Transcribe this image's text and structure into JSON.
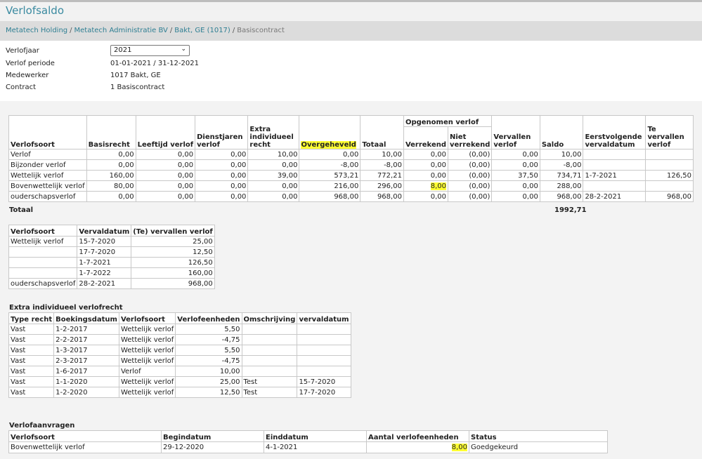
{
  "title": "Verlofsaldo",
  "breadcrumb": [
    "Metatech Holding",
    "Metatech Administratie BV",
    "Bakt, GE (1017)",
    "Basiscontract"
  ],
  "info": {
    "jaar_label": "Verlofjaar",
    "jaar_value": "2021",
    "periode_label": "Verlof periode",
    "periode_value": "01-01-2021 / 31-12-2021",
    "medewerker_label": "Medewerker",
    "medewerker_value": "1017 Bakt, GE",
    "contract_label": "Contract",
    "contract_value": "1 Basiscontract"
  },
  "main_table": {
    "headers": {
      "verlofsoort": "Verlofsoort",
      "basisrecht": "Basisrecht",
      "leeftijd": "Leeftijd verlof",
      "dienstjaren": "Dienstjaren verlof",
      "extra": "Extra individueel recht",
      "overgeheveld": "Overgeheveld",
      "totaal": "Totaal",
      "opgenomen": "Opgenomen verlof",
      "verrekend": "Verrekend",
      "niet_verrekend": "Niet verrekend",
      "vervallen": "Vervallen verlof",
      "saldo": "Saldo",
      "eerstvolgende": "Eerstvolgende vervaldatum",
      "te_vervallen": "Te vervallen verlof"
    },
    "rows": [
      [
        "Verlof",
        "0,00",
        "0,00",
        "0,00",
        "10,00",
        "0,00",
        "10,00",
        "0,00",
        "(0,00)",
        "0,00",
        "10,00",
        "",
        ""
      ],
      [
        "Bijzonder verlof",
        "0,00",
        "0,00",
        "0,00",
        "0,00",
        "-8,00",
        "-8,00",
        "0,00",
        "(0,00)",
        "0,00",
        "-8,00",
        "",
        ""
      ],
      [
        "Wettelijk verlof",
        "160,00",
        "0,00",
        "0,00",
        "39,00",
        "573,21",
        "772,21",
        "0,00",
        "(0,00)",
        "37,50",
        "734,71",
        "1-7-2021",
        "126,50"
      ],
      [
        "Bovenwettelijk verlof",
        "80,00",
        "0,00",
        "0,00",
        "0,00",
        "216,00",
        "296,00",
        "8,00",
        "(0,00)",
        "0,00",
        "288,00",
        "",
        ""
      ],
      [
        "ouderschapsverlof",
        "0,00",
        "0,00",
        "0,00",
        "0,00",
        "968,00",
        "968,00",
        "0,00",
        "(0,00)",
        "0,00",
        "968,00",
        "28-2-2021",
        "968,00"
      ]
    ],
    "totaal_label": "Totaal",
    "totaal_value": "1992,71"
  },
  "verval_table": {
    "headers": [
      "Verlofsoort",
      "Vervaldatum",
      "(Te) vervallen verlof"
    ],
    "rows": [
      [
        "Wettelijk verlof",
        "15-7-2020",
        "25,00"
      ],
      [
        "",
        "17-7-2020",
        "12,50"
      ],
      [
        "",
        "1-7-2021",
        "126,50"
      ],
      [
        "",
        "1-7-2022",
        "160,00"
      ],
      [
        "ouderschapsverlof",
        "28-2-2021",
        "968,00"
      ]
    ]
  },
  "extra_table": {
    "title": "Extra individueel verlofrecht",
    "headers": [
      "Type recht",
      "Boekingsdatum",
      "Verlofsoort",
      "Verlofeenheden",
      "Omschrijving",
      "vervaldatum"
    ],
    "rows": [
      [
        "Vast",
        "1-2-2017",
        "Wettelijk verlof",
        "5,50",
        "",
        ""
      ],
      [
        "Vast",
        "2-2-2017",
        "Wettelijk verlof",
        "-4,75",
        "",
        ""
      ],
      [
        "Vast",
        "1-3-2017",
        "Wettelijk verlof",
        "5,50",
        "",
        ""
      ],
      [
        "Vast",
        "2-3-2017",
        "Wettelijk verlof",
        "-4,75",
        "",
        ""
      ],
      [
        "Vast",
        "1-6-2017",
        "Verlof",
        "10,00",
        "",
        ""
      ],
      [
        "Vast",
        "1-1-2020",
        "Wettelijk verlof",
        "25,00",
        "Test",
        "15-7-2020"
      ],
      [
        "Vast",
        "1-2-2020",
        "Wettelijk verlof",
        "12,50",
        "Test",
        "17-7-2020"
      ]
    ]
  },
  "aanvragen_table": {
    "title": "Verlofaanvragen",
    "headers": [
      "Verlofsoort",
      "Begindatum",
      "Einddatum",
      "Aantal verlofeenheden",
      "Status"
    ],
    "rows": [
      [
        "Bovenwettelijk verlof",
        "29-12-2020",
        "4-1-2021",
        "8,00",
        "Goedgekeurd"
      ]
    ]
  },
  "highlight_color": "#ffff33"
}
